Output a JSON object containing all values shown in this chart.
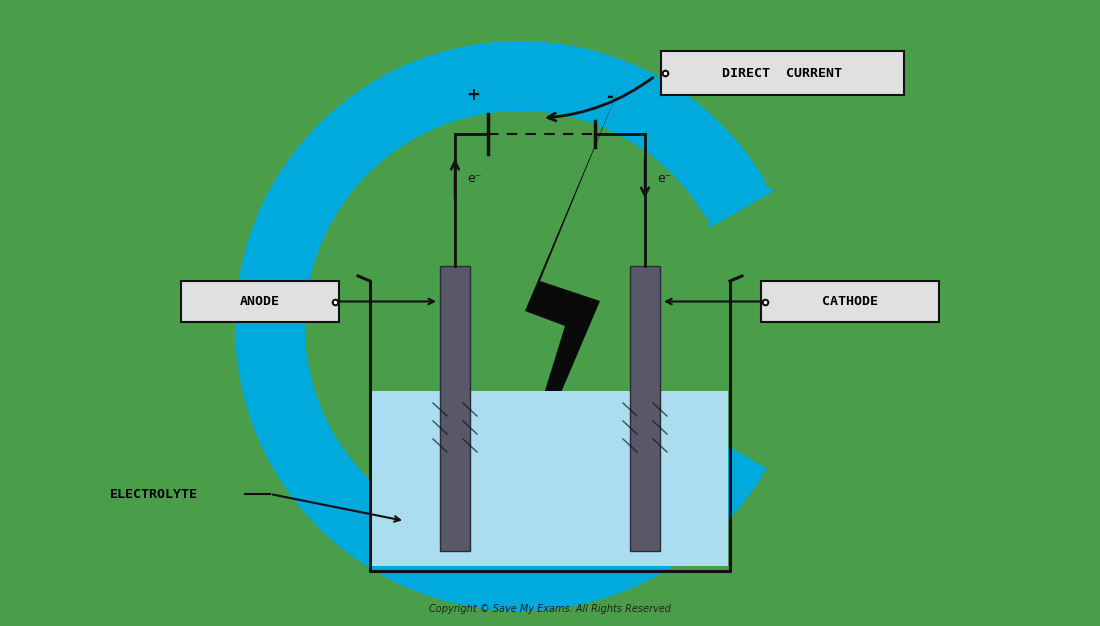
{
  "bg_color": "#4a9e4a",
  "blue_arc_color": "#00aadd",
  "electrode_color": "#585868",
  "beaker_fill_color": "#aaddee",
  "beaker_line_color": "#111111",
  "lightning_color": "#0a0a0a",
  "circuit_color": "#111111",
  "label_box_color": "#e0e0e0",
  "label_text_color": "#000000",
  "copyright_text": "Copyright © Save My Exams. All Rights Reserved",
  "anode_label": "ANODE",
  "cathode_label": "CATHODE",
  "electrolyte_label": "ELECTROLYTE",
  "direct_current_label": "DIRECT  CURRENT",
  "plus_label": "+",
  "minus_label": "-",
  "electron_left": "e⁻",
  "electron_right": "e⁻"
}
